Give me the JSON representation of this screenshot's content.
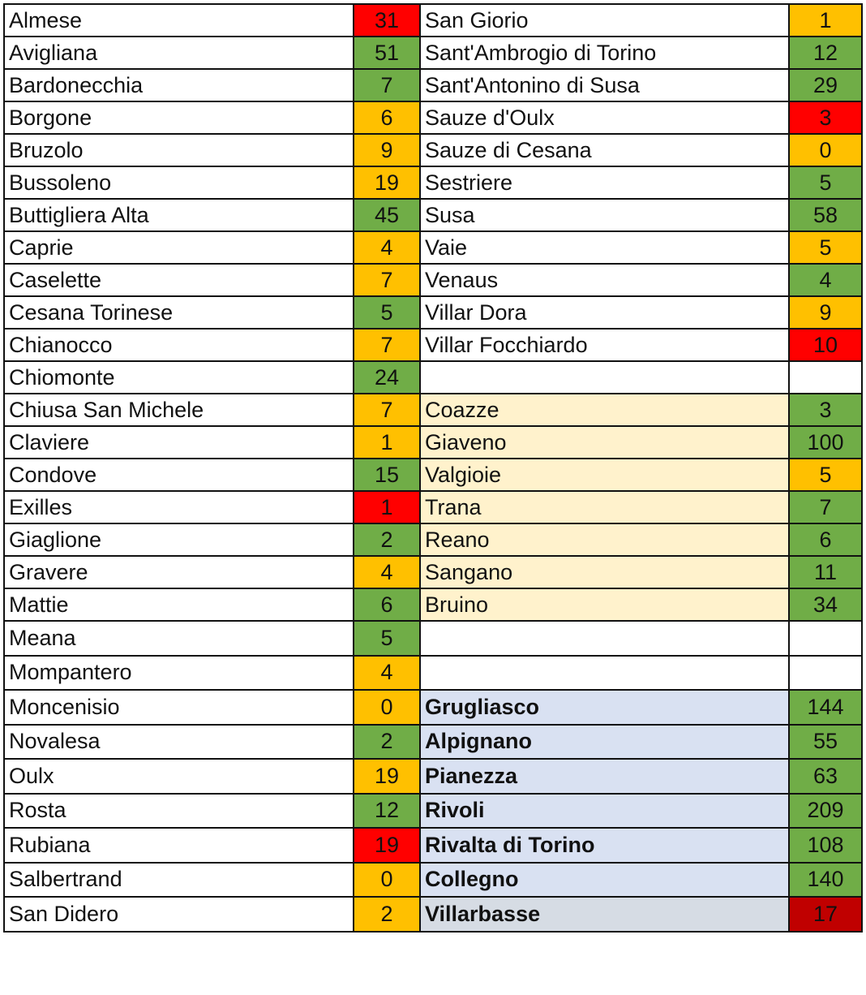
{
  "colors": {
    "green": "#70AD47",
    "orange": "#FFC000",
    "red": "#FF0000",
    "dark_red": "#C00000",
    "light_yellow": "#FFF2CC",
    "light_blue": "#D9E1F2",
    "gray_blue": "#D6DCE4",
    "white": "#FFFFFF"
  },
  "rows": [
    {
      "left": {
        "name": "Almese",
        "value": "31",
        "color": "red"
      },
      "right": {
        "name": "San Giorio",
        "value": "1",
        "color": "orange"
      }
    },
    {
      "left": {
        "name": "Avigliana",
        "value": "51",
        "color": "green"
      },
      "right": {
        "name": "Sant'Ambrogio di Torino",
        "value": "12",
        "color": "green"
      }
    },
    {
      "left": {
        "name": "Bardonecchia",
        "value": "7",
        "color": "green"
      },
      "right": {
        "name": "Sant'Antonino di Susa",
        "value": "29",
        "color": "green"
      }
    },
    {
      "left": {
        "name": "Borgone",
        "value": "6",
        "color": "orange"
      },
      "right": {
        "name": "Sauze d'Oulx",
        "value": "3",
        "color": "red"
      }
    },
    {
      "left": {
        "name": "Bruzolo",
        "value": "9",
        "color": "orange"
      },
      "right": {
        "name": "Sauze di Cesana",
        "value": "0",
        "color": "orange"
      }
    },
    {
      "left": {
        "name": "Bussoleno",
        "value": "19",
        "color": "orange"
      },
      "right": {
        "name": "Sestriere",
        "value": "5",
        "color": "green"
      }
    },
    {
      "left": {
        "name": "Buttigliera Alta",
        "value": "45",
        "color": "green"
      },
      "right": {
        "name": "Susa",
        "value": "58",
        "color": "green"
      }
    },
    {
      "left": {
        "name": "Caprie",
        "value": "4",
        "color": "orange"
      },
      "right": {
        "name": "Vaie",
        "value": "5",
        "color": "orange"
      }
    },
    {
      "left": {
        "name": "Caselette",
        "value": "7",
        "color": "orange"
      },
      "right": {
        "name": "Venaus",
        "value": "4",
        "color": "green"
      }
    },
    {
      "left": {
        "name": "Cesana Torinese",
        "value": "5",
        "color": "green"
      },
      "right": {
        "name": "Villar Dora",
        "value": "9",
        "color": "orange"
      }
    },
    {
      "left": {
        "name": "Chianocco",
        "value": "7",
        "color": "orange"
      },
      "right": {
        "name": "Villar Focchiardo",
        "value": "10",
        "color": "red"
      }
    },
    {
      "left": {
        "name": "Chiomonte",
        "value": "24",
        "color": "green"
      },
      "right": {
        "name": "",
        "value": "",
        "color": "white"
      }
    },
    {
      "left": {
        "name": "Chiusa San Michele",
        "value": "7",
        "color": "orange"
      },
      "right": {
        "name": "Coazze",
        "value": "3",
        "color": "green",
        "bg": "light_yellow"
      }
    },
    {
      "left": {
        "name": "Claviere",
        "value": "1",
        "color": "orange"
      },
      "right": {
        "name": "Giaveno",
        "value": "100",
        "color": "green",
        "bg": "light_yellow"
      }
    },
    {
      "left": {
        "name": "Condove",
        "value": "15",
        "color": "green"
      },
      "right": {
        "name": "Valgioie",
        "value": "5",
        "color": "orange",
        "bg": "light_yellow"
      }
    },
    {
      "left": {
        "name": "Exilles",
        "value": "1",
        "color": "red"
      },
      "right": {
        "name": "Trana",
        "value": "7",
        "color": "green",
        "bg": "light_yellow"
      }
    },
    {
      "left": {
        "name": "Giaglione",
        "value": "2",
        "color": "green"
      },
      "right": {
        "name": "Reano",
        "value": "6",
        "color": "green",
        "bg": "light_yellow"
      }
    },
    {
      "left": {
        "name": "Gravere",
        "value": "4",
        "color": "orange"
      },
      "right": {
        "name": "Sangano",
        "value": "11",
        "color": "green",
        "bg": "light_yellow"
      }
    },
    {
      "left": {
        "name": "Mattie",
        "value": "6",
        "color": "green"
      },
      "right": {
        "name": "Bruino",
        "value": "34",
        "color": "green",
        "bg": "light_yellow"
      }
    },
    {
      "left": {
        "name": "Meana",
        "value": "5",
        "color": "green"
      },
      "right": {
        "name": "",
        "value": "",
        "color": "white"
      }
    },
    {
      "left": {
        "name": "Mompantero",
        "value": "4",
        "color": "orange"
      },
      "right": {
        "name": "",
        "value": "",
        "color": "white"
      }
    },
    {
      "left": {
        "name": "Moncenisio",
        "value": "0",
        "color": "orange"
      },
      "right": {
        "name": "Grugliasco",
        "value": "144",
        "color": "green",
        "bg": "light_blue",
        "bold": true
      }
    },
    {
      "left": {
        "name": "Novalesa",
        "value": "2",
        "color": "green"
      },
      "right": {
        "name": "Alpignano",
        "value": "55",
        "color": "green",
        "bg": "light_blue",
        "bold": true
      }
    },
    {
      "left": {
        "name": "Oulx",
        "value": "19",
        "color": "orange"
      },
      "right": {
        "name": "Pianezza",
        "value": "63",
        "color": "green",
        "bg": "light_blue",
        "bold": true
      }
    },
    {
      "left": {
        "name": "Rosta",
        "value": "12",
        "color": "green"
      },
      "right": {
        "name": "Rivoli",
        "value": "209",
        "color": "green",
        "bg": "light_blue",
        "bold": true
      }
    },
    {
      "left": {
        "name": "Rubiana",
        "value": "19",
        "color": "red"
      },
      "right": {
        "name": "Rivalta di Torino",
        "value": "108",
        "color": "green",
        "bg": "light_blue",
        "bold": true
      }
    },
    {
      "left": {
        "name": "Salbertrand",
        "value": "0",
        "color": "orange"
      },
      "right": {
        "name": "Collegno",
        "value": "140",
        "color": "green",
        "bg": "light_blue",
        "bold": true
      }
    },
    {
      "left": {
        "name": "San Didero",
        "value": "2",
        "color": "orange"
      },
      "right": {
        "name": "Villarbasse",
        "value": "17",
        "color": "dark_red",
        "bg": "gray_blue",
        "bold": true
      }
    }
  ]
}
